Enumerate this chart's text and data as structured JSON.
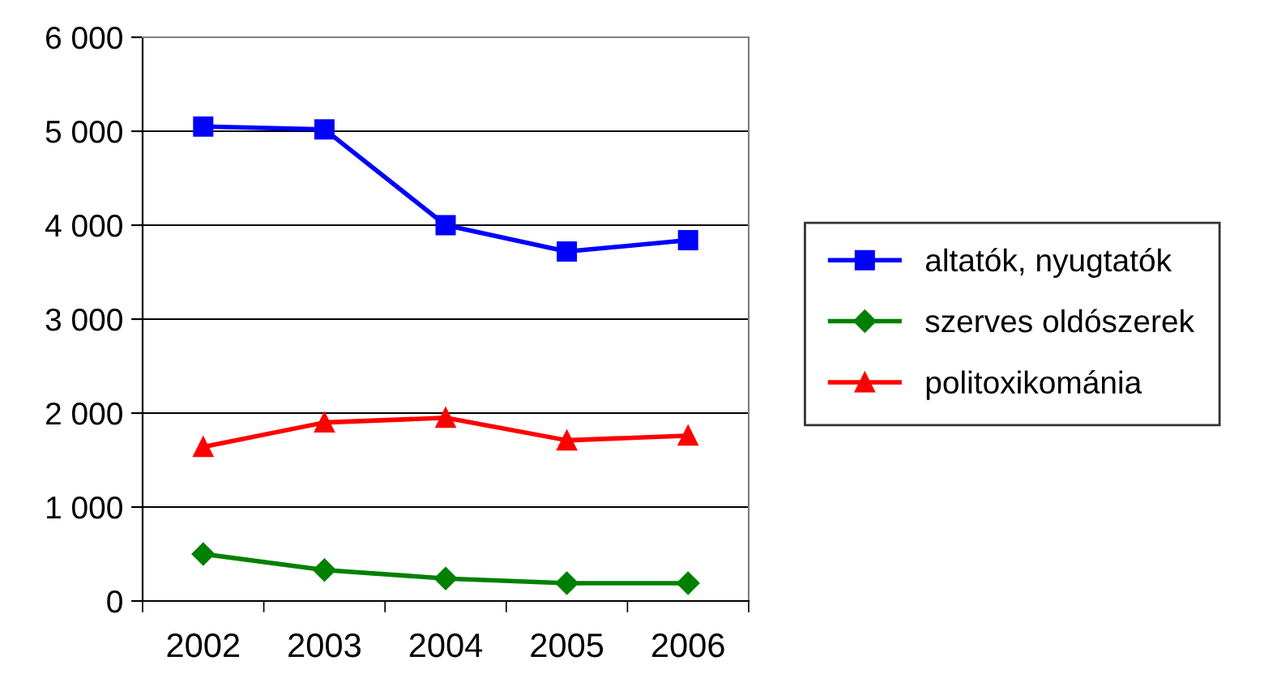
{
  "chart_data": {
    "type": "line",
    "categories": [
      "2002",
      "2003",
      "2004",
      "2005",
      "2006"
    ],
    "series": [
      {
        "name": "altatók, nyugtatók",
        "color": "#0000ff",
        "marker": "square",
        "values": [
          5050,
          5020,
          4000,
          3720,
          3840
        ]
      },
      {
        "name": "szerves oldószerek",
        "color": "#008000",
        "marker": "diamond",
        "values": [
          500,
          330,
          240,
          190,
          190
        ]
      },
      {
        "name": "politoxikománia",
        "color": "#ff0000",
        "marker": "triangle",
        "values": [
          1640,
          1900,
          1950,
          1710,
          1760
        ]
      }
    ],
    "ylim": [
      0,
      6000
    ],
    "yticks": [
      0,
      {
        "value": 1000,
        "label": "1 000"
      },
      {
        "value": 2000,
        "label": "2 000"
      },
      {
        "value": 3000,
        "label": "3 000"
      },
      {
        "value": 4000,
        "label": "4 000"
      },
      {
        "value": 5000,
        "label": "5 000"
      },
      {
        "value": 6000,
        "label": "6 000"
      }
    ],
    "grid": "y",
    "legend": "right",
    "line_style": "solid"
  }
}
